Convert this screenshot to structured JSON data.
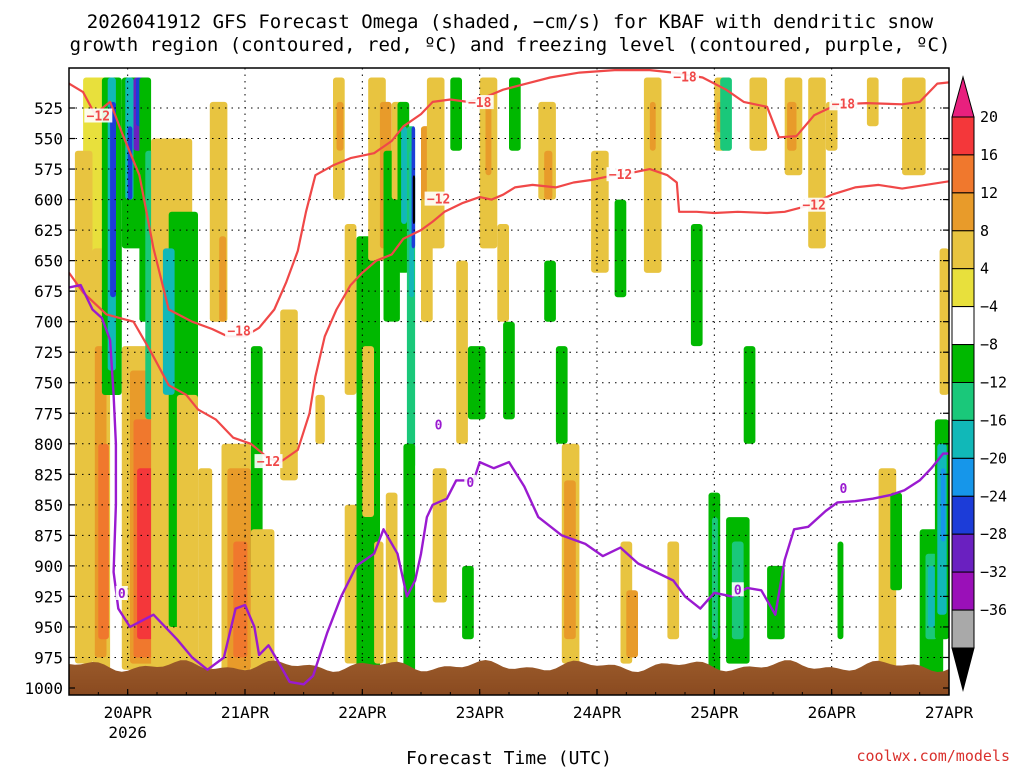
{
  "title": {
    "line1": "2026041912 GFS Forecast Omega (shaded, −cm/s) for KBAF with dendritic snow",
    "line2": "growth region (contoured, red, ºC) and freezing level (contoured, purple, ºC)"
  },
  "credit": "coolwx.com/models",
  "chart_data": {
    "type": "heatmap",
    "xlabel": "Forecast Time (UTC)",
    "x_range_days": [
      19.5,
      27.0
    ],
    "x_ticks": [
      {
        "value": 20,
        "label": "20APR",
        "sublabel": "2026"
      },
      {
        "value": 21,
        "label": "21APR"
      },
      {
        "value": 22,
        "label": "22APR"
      },
      {
        "value": 23,
        "label": "23APR"
      },
      {
        "value": 24,
        "label": "24APR"
      },
      {
        "value": 25,
        "label": "25APR"
      },
      {
        "value": 26,
        "label": "26APR"
      },
      {
        "value": 27,
        "label": "27APR"
      }
    ],
    "y_axis": "pressure (hPa)",
    "y_range": [
      500,
      1000
    ],
    "y_reversed": true,
    "y_ticks": [
      525,
      550,
      575,
      600,
      625,
      650,
      675,
      700,
      725,
      750,
      775,
      800,
      825,
      850,
      875,
      900,
      925,
      950,
      975,
      1000
    ],
    "grid": true,
    "colorbar": {
      "ticks": [
        "20",
        "16",
        "12",
        "8",
        "4",
        "−4",
        "−8",
        "−12",
        "−16",
        "−20",
        "−24",
        "−28",
        "−32",
        "−36"
      ],
      "colors_top_to_bottom": [
        "#e8207e",
        "#f4373a",
        "#f0782d",
        "#e89b2a",
        "#e8c440",
        "#e8e03c",
        "#ffffff",
        "#00b800",
        "#1ac87a",
        "#11b8b8",
        "#1696ea",
        "#1c3cd8",
        "#6a20c0",
        "#9a10b8",
        "#a9a9a9",
        "#000000"
      ]
    },
    "contours": {
      "dendritic_red": [
        {
          "level": -12,
          "label": "−12",
          "points": [
            [
              19.5,
              660
            ],
            [
              19.62,
              676
            ],
            [
              19.82,
              694
            ],
            [
              20.05,
              700
            ],
            [
              20.2,
              725
            ],
            [
              20.35,
              752
            ],
            [
              20.5,
              760
            ],
            [
              20.6,
              772
            ],
            [
              20.75,
              780
            ],
            [
              20.9,
              795
            ],
            [
              21.05,
              800
            ],
            [
              21.2,
              812
            ],
            [
              21.3,
              815
            ],
            [
              21.45,
              805
            ],
            [
              21.55,
              775
            ],
            [
              21.6,
              745
            ],
            [
              21.68,
              712
            ],
            [
              21.78,
              690
            ],
            [
              21.9,
              670
            ],
            [
              22.0,
              660
            ],
            [
              22.12,
              650
            ],
            [
              22.25,
              645
            ],
            [
              22.35,
              632
            ],
            [
              22.5,
              625
            ],
            [
              22.6,
              618
            ],
            [
              22.7,
              610
            ],
            [
              22.85,
              603
            ],
            [
              23.0,
              598
            ],
            [
              23.1,
              600
            ],
            [
              23.2,
              596
            ],
            [
              23.3,
              590
            ],
            [
              23.45,
              588
            ],
            [
              23.65,
              590
            ],
            [
              23.8,
              586
            ],
            [
              23.95,
              584
            ],
            [
              24.05,
              582
            ],
            [
              24.15,
              580
            ],
            [
              24.3,
              578
            ],
            [
              24.45,
              575
            ],
            [
              24.6,
              580
            ],
            [
              24.68,
              586
            ],
            [
              24.7,
              610
            ],
            [
              24.85,
              610
            ],
            [
              25.0,
              611
            ],
            [
              25.2,
              610
            ],
            [
              25.45,
              611
            ],
            [
              25.6,
              610
            ],
            [
              25.8,
              605
            ],
            [
              26.0,
              596
            ],
            [
              26.2,
              590
            ],
            [
              26.4,
              588
            ],
            [
              26.6,
              591
            ],
            [
              26.8,
              588
            ],
            [
              27.0,
              585
            ]
          ]
        },
        {
          "level": -18,
          "label": "−18",
          "points": [
            [
              19.5,
              505
            ],
            [
              19.62,
              512
            ],
            [
              19.72,
              530
            ],
            [
              19.85,
              520
            ],
            [
              19.95,
              545
            ],
            [
              20.1,
              580
            ],
            [
              20.22,
              640
            ],
            [
              20.35,
              690
            ],
            [
              20.55,
              700
            ],
            [
              20.72,
              706
            ],
            [
              20.85,
              712
            ],
            [
              21.0,
              712
            ],
            [
              21.12,
              705
            ],
            [
              21.25,
              690
            ],
            [
              21.35,
              668
            ],
            [
              21.45,
              642
            ],
            [
              21.52,
              610
            ],
            [
              21.6,
              580
            ],
            [
              21.75,
              572
            ],
            [
              21.9,
              566
            ],
            [
              22.1,
              562
            ],
            [
              22.25,
              552
            ],
            [
              22.35,
              540
            ],
            [
              22.5,
              530
            ],
            [
              22.6,
              520
            ],
            [
              22.75,
              518
            ],
            [
              22.9,
              520
            ],
            [
              23.05,
              516
            ],
            [
              23.2,
              510
            ],
            [
              23.4,
              505
            ],
            [
              23.6,
              500
            ],
            [
              23.85,
              496
            ],
            [
              24.15,
              494
            ],
            [
              24.45,
              494
            ],
            [
              24.65,
              496
            ],
            [
              24.9,
              500
            ],
            [
              25.1,
              510
            ],
            [
              25.25,
              520
            ],
            [
              25.45,
              524
            ],
            [
              25.55,
              549
            ],
            [
              25.7,
              548
            ],
            [
              25.85,
              531
            ],
            [
              26.05,
              522
            ],
            [
              26.3,
              521
            ],
            [
              26.6,
              522
            ],
            [
              26.75,
              520
            ],
            [
              26.9,
              505
            ],
            [
              27.0,
              504
            ]
          ]
        }
      ],
      "freezing_purple": [
        {
          "level": 0,
          "label": "0",
          "points": [
            [
              19.5,
              672
            ],
            [
              19.6,
              670
            ],
            [
              19.7,
              690
            ],
            [
              19.78,
              697
            ],
            [
              19.85,
              715
            ],
            [
              19.88,
              760
            ],
            [
              19.9,
              800
            ],
            [
              19.9,
              850
            ],
            [
              19.88,
              905
            ],
            [
              19.92,
              935
            ],
            [
              20.02,
              950
            ],
            [
              20.12,
              945
            ],
            [
              20.22,
              940
            ],
            [
              20.32,
              950
            ],
            [
              20.42,
              960
            ],
            [
              20.55,
              975
            ],
            [
              20.68,
              985
            ],
            [
              20.82,
              975
            ],
            [
              20.92,
              935
            ],
            [
              21.0,
              932
            ],
            [
              21.08,
              950
            ],
            [
              21.12,
              973
            ],
            [
              21.2,
              965
            ],
            [
              21.28,
              978
            ],
            [
              21.38,
              995
            ],
            [
              21.5,
              997
            ],
            [
              21.58,
              990
            ],
            [
              21.7,
              955
            ],
            [
              21.82,
              925
            ],
            [
              21.95,
              900
            ],
            [
              22.1,
              890
            ],
            [
              22.18,
              870
            ],
            [
              22.3,
              890
            ],
            [
              22.38,
              925
            ],
            [
              22.45,
              912
            ],
            [
              22.5,
              890
            ],
            [
              22.55,
              860
            ],
            [
              22.6,
              850
            ],
            [
              22.72,
              845
            ],
            [
              22.8,
              830
            ],
            [
              22.95,
              830
            ],
            [
              23.0,
              815
            ],
            [
              23.12,
              820
            ],
            [
              23.25,
              815
            ],
            [
              23.38,
              835
            ],
            [
              23.5,
              860
            ],
            [
              23.7,
              875
            ],
            [
              23.9,
              882
            ],
            [
              24.05,
              892
            ],
            [
              24.2,
              885
            ],
            [
              24.35,
              898
            ],
            [
              24.5,
              905
            ],
            [
              24.65,
              912
            ],
            [
              24.75,
              925
            ],
            [
              24.88,
              935
            ],
            [
              25.0,
              922
            ],
            [
              25.15,
              925
            ],
            [
              25.28,
              918
            ],
            [
              25.4,
              920
            ],
            [
              25.52,
              940
            ],
            [
              25.6,
              895
            ],
            [
              25.68,
              870
            ],
            [
              25.8,
              868
            ],
            [
              25.95,
              855
            ],
            [
              26.05,
              848
            ],
            [
              26.2,
              847
            ],
            [
              26.35,
              845
            ],
            [
              26.5,
              842
            ],
            [
              26.62,
              838
            ],
            [
              26.75,
              830
            ],
            [
              26.85,
              820
            ],
            [
              26.95,
              808
            ],
            [
              27.0,
              808
            ]
          ]
        }
      ]
    }
  }
}
